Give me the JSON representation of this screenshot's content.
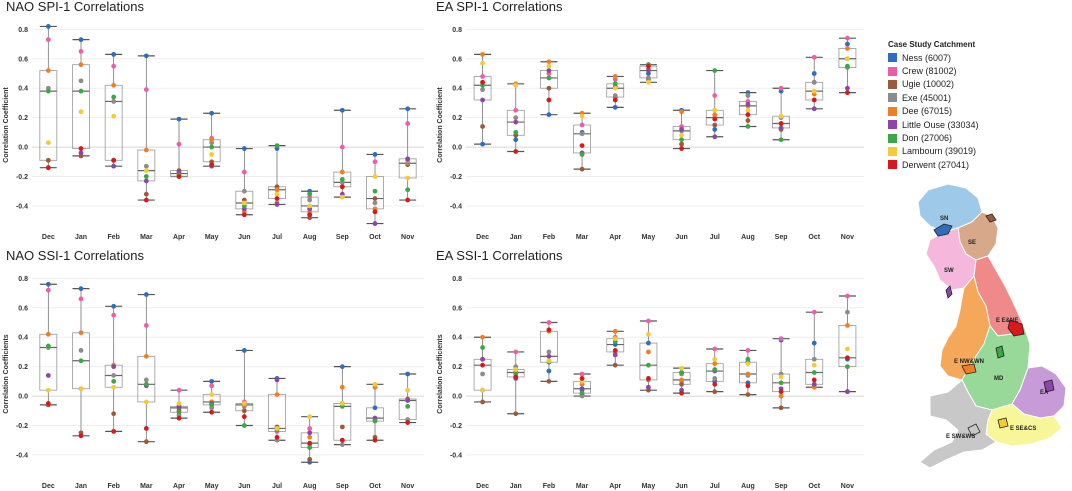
{
  "legend": {
    "title": "Case Study Catchment",
    "items": [
      {
        "label": "Ness (6007)",
        "color": "#2f6ebd"
      },
      {
        "label": "Crew (81002)",
        "color": "#ee5ea8"
      },
      {
        "label": "Ugie (10002)",
        "color": "#9b5b3a"
      },
      {
        "label": "Exe (45001)",
        "color": "#8c8c8c"
      },
      {
        "label": "Dee (67015)",
        "color": "#f07f22"
      },
      {
        "label": "Little Ouse (33034)",
        "color": "#8b46a8"
      },
      {
        "label": "Don (27006)",
        "color": "#3aa845"
      },
      {
        "label": "Lambourn (39019)",
        "color": "#f2cc32"
      },
      {
        "label": "Derwent (27041)",
        "color": "#d7191c"
      }
    ]
  },
  "map": {
    "regions": [
      {
        "label": "SN",
        "color": "#9ec9e8"
      },
      {
        "label": "SE",
        "color": "#d7a889"
      },
      {
        "label": "SW",
        "color": "#f5b8dc"
      },
      {
        "label": "E E&NE",
        "color": "#f08a8a"
      },
      {
        "label": "E NW&WN",
        "color": "#f5a85a"
      },
      {
        "label": "MD",
        "color": "#98d898"
      },
      {
        "label": "EA",
        "color": "#c79ad8"
      },
      {
        "label": "E SE&CS",
        "color": "#f7f79a"
      },
      {
        "label": "E SW&WS",
        "color": "#c8c8c8"
      }
    ]
  },
  "chart_data": [
    {
      "type": "box",
      "title": "NAO SPI-1 Correlations",
      "ylabel": "Correlation Coefficient",
      "ylim": [
        -0.55,
        0.85
      ],
      "yticks": [
        -0.4,
        -0.2,
        0.0,
        0.2,
        0.4,
        0.6,
        0.8
      ],
      "categories": [
        "Dec",
        "Jan",
        "Feb",
        "Mar",
        "Apr",
        "May",
        "Jun",
        "Jul",
        "Aug",
        "Sep",
        "Oct",
        "Nov"
      ],
      "values": [
        [
          0.82,
          0.73,
          0.63,
          0.62,
          0.19,
          0.23,
          -0.01,
          -0.01,
          -0.3,
          0.25,
          -0.05,
          0.26
        ],
        [
          0.73,
          0.65,
          0.55,
          0.39,
          0.02,
          0.06,
          -0.17,
          -0.29,
          -0.34,
          0.0,
          -0.1,
          0.16
        ],
        [
          -0.09,
          -0.06,
          -0.09,
          -0.32,
          -0.16,
          -0.1,
          -0.36,
          -0.27,
          -0.48,
          -0.27,
          -0.35,
          -0.12
        ],
        [
          0.4,
          0.45,
          0.31,
          -0.13,
          -0.2,
          0.03,
          -0.3,
          -0.38,
          -0.36,
          -0.24,
          -0.38,
          -0.11
        ],
        [
          0.52,
          0.56,
          0.42,
          -0.02,
          -0.18,
          0.05,
          -0.44,
          -0.29,
          -0.44,
          -0.17,
          -0.42,
          -0.09
        ],
        [
          -0.14,
          -0.04,
          -0.13,
          -0.23,
          -0.17,
          -0.13,
          -0.42,
          -0.39,
          -0.42,
          -0.32,
          -0.52,
          -0.08
        ],
        [
          0.38,
          0.38,
          0.34,
          -0.2,
          -0.19,
          0.0,
          -0.4,
          0.01,
          -0.32,
          -0.22,
          -0.3,
          -0.29
        ],
        [
          0.03,
          0.24,
          0.21,
          -0.16,
          -0.2,
          -0.05,
          -0.38,
          -0.32,
          -0.4,
          -0.34,
          -0.2,
          -0.21
        ],
        [
          -0.14,
          -0.01,
          -0.09,
          -0.36,
          -0.2,
          -0.12,
          -0.46,
          -0.35,
          -0.46,
          -0.27,
          -0.44,
          -0.36
        ]
      ]
    },
    {
      "type": "box",
      "title": "EA SPI-1 Correlations",
      "ylabel": "Correlation Coefficient",
      "ylim": [
        -0.55,
        0.85
      ],
      "yticks": [
        -0.4,
        -0.2,
        0.0,
        0.2,
        0.4,
        0.6,
        0.8
      ],
      "categories": [
        "Dec",
        "Jan",
        "Feb",
        "Mar",
        "Apr",
        "May",
        "Jun",
        "Jul",
        "Aug",
        "Sep",
        "Oct",
        "Nov"
      ],
      "values": [
        [
          0.02,
          0.05,
          0.22,
          0.1,
          0.27,
          0.5,
          0.25,
          0.12,
          0.37,
          0.38,
          0.5,
          0.7
        ],
        [
          0.48,
          0.25,
          0.5,
          0.15,
          0.46,
          0.56,
          0.14,
          0.35,
          0.31,
          0.4,
          0.61,
          0.74
        ],
        [
          0.14,
          0.08,
          0.4,
          -0.15,
          0.34,
          0.46,
          0.02,
          0.15,
          0.18,
          0.12,
          0.44,
          0.6
        ],
        [
          0.39,
          0.2,
          0.47,
          0.09,
          0.35,
          0.47,
          0.11,
          0.2,
          0.35,
          0.2,
          0.44,
          0.54
        ],
        [
          0.63,
          0.43,
          0.58,
          0.23,
          0.48,
          0.53,
          0.24,
          0.22,
          0.28,
          0.16,
          0.36,
          0.67
        ],
        [
          0.32,
          0.17,
          0.52,
          -0.04,
          0.41,
          0.52,
          0.12,
          0.07,
          0.29,
          0.13,
          0.26,
          0.4
        ],
        [
          0.42,
          0.1,
          0.47,
          -0.05,
          0.43,
          0.56,
          0.05,
          0.52,
          0.14,
          0.05,
          0.32,
          0.55
        ],
        [
          0.57,
          0.42,
          0.55,
          0.21,
          0.4,
          0.44,
          0.08,
          0.25,
          0.25,
          0.21,
          0.38,
          0.6
        ],
        [
          0.44,
          -0.03,
          0.32,
          0.01,
          0.32,
          0.55,
          -0.01,
          0.19,
          0.22,
          0.16,
          0.32,
          0.37
        ]
      ]
    },
    {
      "type": "box",
      "title": "NAO SSI-1 Correlations",
      "ylabel": "Correlation Coefficients",
      "ylim": [
        -0.55,
        0.85
      ],
      "yticks": [
        -0.4,
        -0.2,
        0.0,
        0.2,
        0.4,
        0.6,
        0.8
      ],
      "categories": [
        "Dec",
        "Jan",
        "Feb",
        "Mar",
        "Apr",
        "May",
        "Jun",
        "Jul",
        "Aug",
        "Sep",
        "Oct",
        "Nov"
      ],
      "values": [
        [
          0.76,
          0.73,
          0.61,
          0.69,
          -0.08,
          0.1,
          0.31,
          0.12,
          -0.45,
          0.2,
          -0.08,
          0.15
        ],
        [
          0.72,
          0.66,
          0.55,
          0.48,
          0.04,
          0.07,
          -0.04,
          -0.24,
          -0.22,
          -0.3,
          -0.15,
          -0.16
        ],
        [
          -0.06,
          -0.25,
          -0.12,
          -0.31,
          -0.1,
          -0.04,
          -0.1,
          -0.21,
          -0.43,
          -0.21,
          -0.28,
          -0.02
        ],
        [
          0.33,
          0.31,
          0.14,
          0.11,
          -0.13,
          -0.08,
          -0.07,
          -0.3,
          -0.33,
          -0.33,
          -0.16,
          -0.16
        ],
        [
          0.42,
          0.43,
          0.21,
          0.27,
          -0.07,
          -0.04,
          -0.06,
          0.01,
          -0.28,
          0.06,
          0.06,
          -0.03
        ],
        [
          0.14,
          0.05,
          0.2,
          0.07,
          -0.07,
          -0.05,
          -0.05,
          0.11,
          -0.25,
          -0.05,
          -0.15,
          -0.03
        ],
        [
          0.34,
          0.24,
          0.1,
          0.08,
          -0.11,
          -0.06,
          -0.2,
          -0.23,
          -0.35,
          -0.07,
          -0.17,
          -0.07
        ],
        [
          0.04,
          0.05,
          0.06,
          -0.04,
          -0.05,
          0.01,
          -0.05,
          -0.22,
          -0.14,
          -0.05,
          0.08,
          0.04
        ],
        [
          -0.05,
          -0.27,
          -0.24,
          -0.22,
          -0.15,
          -0.11,
          -0.14,
          -0.28,
          -0.32,
          -0.3,
          -0.3,
          -0.18
        ]
      ]
    },
    {
      "type": "box",
      "title": "EA SSI-1 Correlations",
      "ylabel": "Correlation Coefficients",
      "ylim": [
        -0.55,
        0.85
      ],
      "yticks": [
        -0.4,
        -0.2,
        0.0,
        0.2,
        0.4,
        0.6,
        0.8
      ],
      "categories": [
        "Dec",
        "Jan",
        "Feb",
        "Mar",
        "Apr",
        "May",
        "Jun",
        "Jul",
        "Aug",
        "Sep",
        "Oct",
        "Nov"
      ],
      "values": [
        [
          0.04,
          0.18,
          0.17,
          0.05,
          0.35,
          0.36,
          0.16,
          0.1,
          0.09,
          0.38,
          0.36,
          0.25
        ],
        [
          0.25,
          0.3,
          0.5,
          0.15,
          0.4,
          0.51,
          0.1,
          0.32,
          0.31,
          0.39,
          0.57,
          0.68
        ],
        [
          -0.04,
          -0.12,
          0.1,
          0.01,
          0.21,
          0.04,
          0.08,
          0.03,
          0.01,
          -0.08,
          0.07,
          0.03
        ],
        [
          0.15,
          0.2,
          0.3,
          0.0,
          0.3,
          0.11,
          0.15,
          0.12,
          0.14,
          0.15,
          0.25,
          0.57
        ],
        [
          0.4,
          0.15,
          0.44,
          0.08,
          0.44,
          0.3,
          0.11,
          0.22,
          0.15,
          0.0,
          0.06,
          0.48
        ],
        [
          0.25,
          0.12,
          0.27,
          0.04,
          0.28,
          0.06,
          0.04,
          0.17,
          0.23,
          0.05,
          0.08,
          0.03
        ],
        [
          0.33,
          0.16,
          0.23,
          0.02,
          0.37,
          0.21,
          0.16,
          0.18,
          0.25,
          0.09,
          0.16,
          0.2
        ],
        [
          0.04,
          0.18,
          0.24,
          0.1,
          0.39,
          0.42,
          0.19,
          0.25,
          0.22,
          0.13,
          0.21,
          0.32
        ],
        [
          0.21,
          0.13,
          0.45,
          0.12,
          0.31,
          0.12,
          0.02,
          0.08,
          0.07,
          0.03,
          0.11,
          0.26
        ]
      ]
    }
  ]
}
